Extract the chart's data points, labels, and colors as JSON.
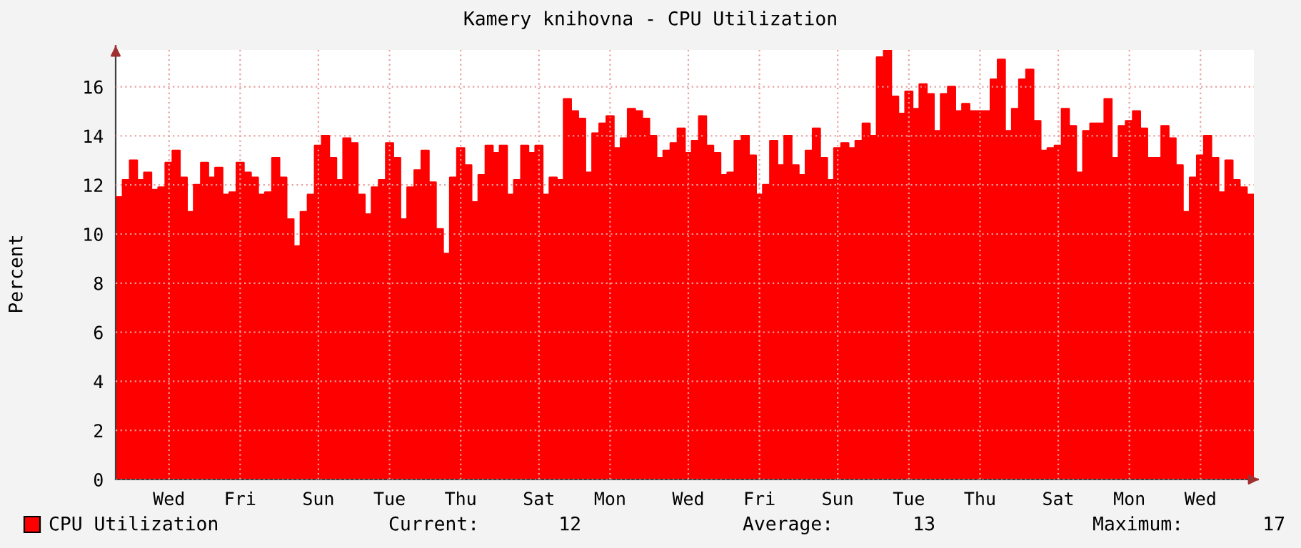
{
  "chart_data": {
    "type": "area",
    "title": "Kamery knihovna - CPU Utilization",
    "ylabel": "Percent",
    "categories": [
      null,
      null,
      null,
      null,
      null,
      null,
      null,
      "Wed",
      null,
      null,
      null,
      null,
      null,
      null,
      null,
      null,
      null,
      "Fri",
      null,
      null,
      null,
      null,
      null,
      null,
      null,
      null,
      null,
      null,
      "Sun",
      null,
      null,
      null,
      null,
      null,
      null,
      null,
      null,
      null,
      "Tue",
      null,
      null,
      null,
      null,
      null,
      null,
      null,
      null,
      null,
      "Thu",
      null,
      null,
      null,
      null,
      null,
      null,
      null,
      null,
      null,
      null,
      "Sat",
      null,
      null,
      null,
      null,
      null,
      null,
      null,
      null,
      null,
      "Mon",
      null,
      null,
      null,
      null,
      null,
      null,
      null,
      null,
      null,
      null,
      "Wed",
      null,
      null,
      null,
      null,
      null,
      null,
      null,
      null,
      null,
      "Fri",
      null,
      null,
      null,
      null,
      null,
      null,
      null,
      null,
      null,
      null,
      "Sun",
      null,
      null,
      null,
      null,
      null,
      null,
      null,
      null,
      null,
      "Tue",
      null,
      null,
      null,
      null,
      null,
      null,
      null,
      null,
      null,
      "Thu",
      null,
      null,
      null,
      null,
      null,
      null,
      null,
      null,
      null,
      null,
      "Sat",
      null,
      null,
      null,
      null,
      null,
      null,
      null,
      null,
      null,
      "Mon",
      null,
      null,
      null,
      null,
      null,
      null,
      null,
      null,
      null,
      "Wed",
      null,
      null,
      null,
      null,
      null,
      null,
      null
    ],
    "series": [
      {
        "name": "CPU Utilization",
        "color": "#ff0000",
        "values": [
          11.5,
          12.2,
          13.0,
          12.2,
          12.5,
          11.8,
          11.9,
          12.9,
          13.4,
          12.3,
          10.9,
          12.0,
          12.9,
          12.3,
          12.7,
          11.6,
          11.7,
          12.9,
          12.5,
          12.3,
          11.6,
          11.7,
          13.1,
          12.3,
          10.6,
          9.5,
          10.9,
          11.6,
          13.6,
          14.0,
          13.1,
          12.2,
          13.9,
          13.7,
          11.6,
          10.8,
          11.9,
          12.2,
          13.7,
          13.1,
          10.6,
          11.9,
          12.6,
          13.4,
          12.1,
          10.2,
          9.2,
          12.3,
          13.5,
          12.8,
          11.3,
          12.4,
          13.6,
          13.3,
          13.6,
          11.6,
          12.2,
          13.6,
          13.3,
          13.6,
          11.6,
          12.3,
          12.2,
          15.5,
          15.0,
          14.7,
          12.5,
          14.1,
          14.5,
          14.8,
          13.5,
          13.9,
          15.1,
          15.0,
          14.7,
          14.0,
          13.1,
          13.4,
          13.7,
          14.3,
          13.3,
          13.8,
          14.8,
          13.6,
          13.3,
          12.4,
          12.5,
          13.8,
          14.0,
          13.2,
          11.6,
          12.0,
          13.8,
          12.8,
          14.0,
          12.8,
          12.4,
          13.4,
          14.3,
          13.1,
          12.2,
          13.5,
          13.7,
          13.5,
          13.8,
          14.5,
          14.0,
          17.2,
          17.5,
          15.6,
          14.9,
          15.8,
          15.1,
          16.1,
          15.7,
          14.2,
          15.7,
          16.0,
          15.0,
          15.3,
          15.0,
          15.0,
          15.0,
          16.3,
          17.1,
          14.2,
          15.1,
          16.3,
          16.7,
          14.6,
          13.4,
          13.5,
          13.6,
          15.1,
          14.4,
          12.5,
          14.2,
          14.5,
          14.5,
          15.5,
          13.1,
          14.4,
          14.6,
          15.0,
          14.3,
          13.1,
          13.1,
          14.4,
          13.9,
          12.8,
          10.9,
          12.3,
          13.2,
          14.0,
          13.1,
          11.7,
          13.0,
          12.2,
          11.9,
          11.6
        ]
      }
    ],
    "ylim": [
      0,
      17.5
    ],
    "yticks": [
      0,
      2,
      4,
      6,
      8,
      10,
      12,
      14,
      16
    ],
    "grid": true,
    "legend": "bottom left",
    "annotations": [
      "Current:       12",
      "Average:       13",
      "Maximum:       17"
    ]
  }
}
